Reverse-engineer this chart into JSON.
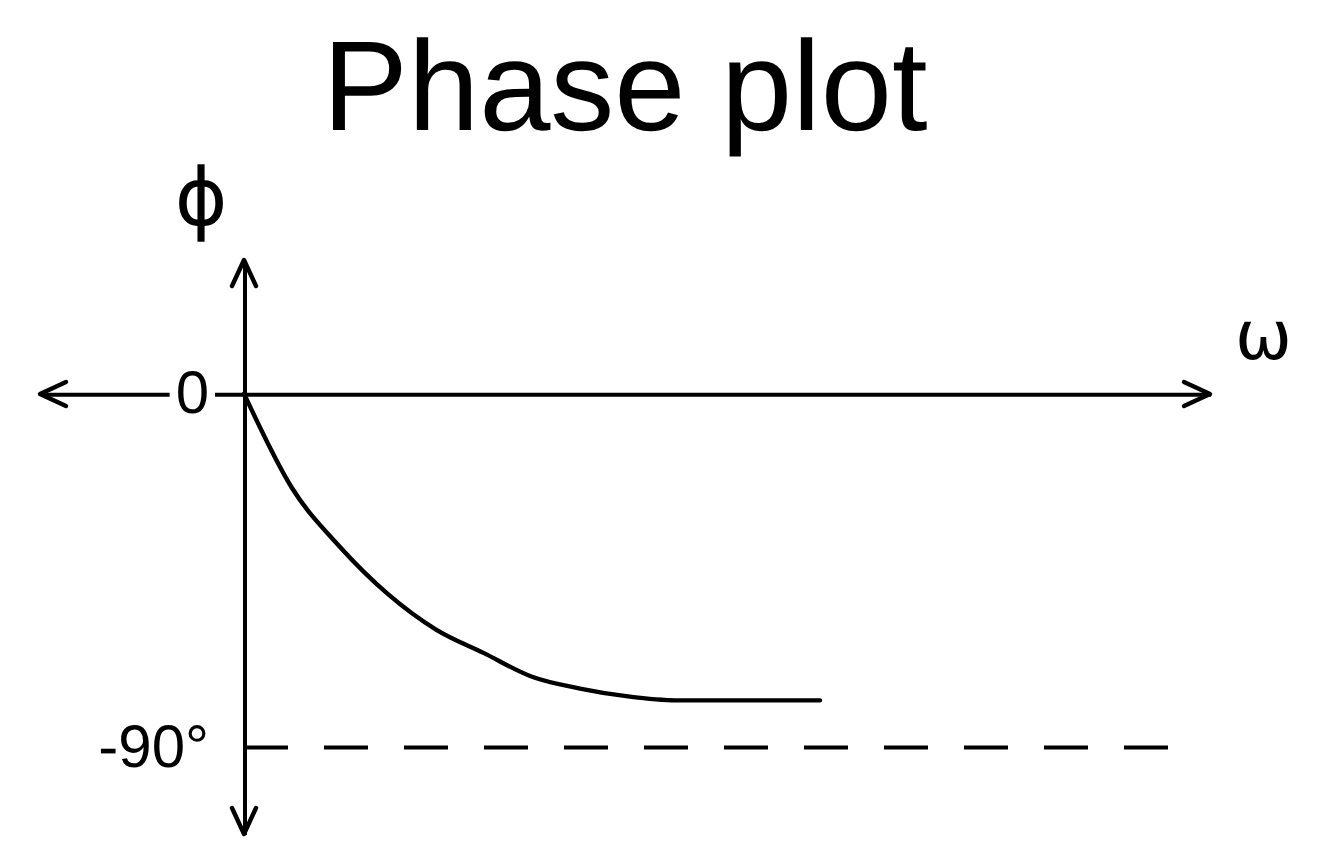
{
  "chart_data": {
    "type": "line",
    "title": "Phase plot",
    "xlabel": "ω",
    "ylabel": "ϕ",
    "categories": [
      null,
      null,
      null,
      null,
      null,
      null,
      null,
      null,
      null,
      null,
      null,
      null,
      null,
      null,
      null,
      null,
      null,
      null,
      null,
      null,
      null
    ],
    "color": "#000000",
    "values": [
      0,
      -24,
      -39,
      -51,
      -60,
      -66,
      -72,
      -75,
      -77,
      -78,
      -78,
      -78,
      -78,
      null,
      null,
      null,
      null,
      null,
      null,
      null,
      null
    ],
    "ylim": [
      -112,
      34
    ],
    "yticks": [
      0,
      {
        "value": -90,
        "label": "-90°"
      }
    ],
    "ref_lines": [
      {
        "axis": "y",
        "value": -90,
        "color": "#000000",
        "line_style": "dashed"
      }
    ],
    "tick_labels": "y",
    "grid": false,
    "marker": "none",
    "line_style": "solid"
  }
}
